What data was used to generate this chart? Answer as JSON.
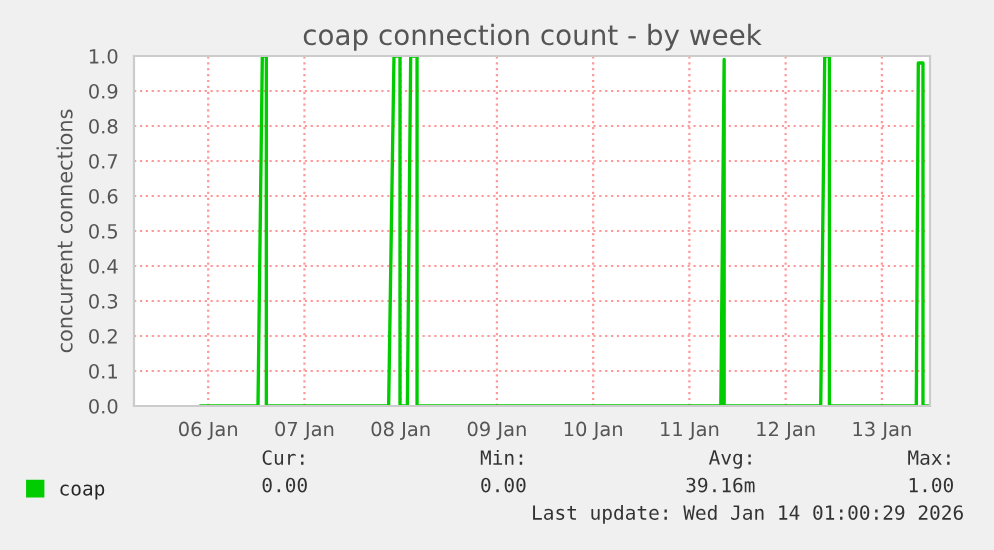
{
  "chart_data": {
    "type": "line",
    "title": "coap connection count - by week",
    "ylabel": "concurrent connections",
    "xlim": [
      "2026-01-05T17:30",
      "2026-01-14T00:00"
    ],
    "xticks": [
      {
        "value": "2026-01-06T12:00",
        "label": "06 Jan"
      },
      {
        "value": "2026-01-07T12:00",
        "label": "07 Jan"
      },
      {
        "value": "2026-01-08T12:00",
        "label": "08 Jan"
      },
      {
        "value": "2026-01-09T12:00",
        "label": "09 Jan"
      },
      {
        "value": "2026-01-10T12:00",
        "label": "10 Jan"
      },
      {
        "value": "2026-01-11T12:00",
        "label": "11 Jan"
      },
      {
        "value": "2026-01-12T12:00",
        "label": "12 Jan"
      },
      {
        "value": "2026-01-13T12:00",
        "label": "13 Jan"
      }
    ],
    "ylim": [
      0,
      1
    ],
    "yticks": [
      {
        "value": 0,
        "label": "0.0"
      },
      {
        "value": 0.1,
        "label": "0.1"
      },
      {
        "value": 0.2,
        "label": "0.2"
      },
      {
        "value": 0.3,
        "label": "0.3"
      },
      {
        "value": 0.4,
        "label": "0.4"
      },
      {
        "value": 0.5,
        "label": "0.5"
      },
      {
        "value": 0.6,
        "label": "0.6"
      },
      {
        "value": 0.7,
        "label": "0.7"
      },
      {
        "value": 0.8,
        "label": "0.8"
      },
      {
        "value": 0.9,
        "label": "0.9"
      },
      {
        "value": 1,
        "label": "1.0"
      }
    ],
    "grid": true,
    "legend": "bottom left",
    "series": [
      {
        "name": "coap",
        "color": "#00cc00",
        "x": [
          "2026-01-06T10:00",
          "2026-01-07T00:25",
          "2026-01-07T01:30",
          "2026-01-07T02:30",
          "2026-01-07T02:30",
          "2026-01-08T09:00",
          "2026-01-08T10:20",
          "2026-01-08T11:50",
          "2026-01-08T11:50",
          "2026-01-08T13:40",
          "2026-01-08T14:30",
          "2026-01-08T16:05",
          "2026-01-08T16:05",
          "2026-01-11T19:50",
          "2026-01-11T20:40",
          "2026-01-11T20:40",
          "2026-01-12T20:45",
          "2026-01-12T21:45",
          "2026-01-12T22:55",
          "2026-01-12T22:55",
          "2026-01-13T20:35",
          "2026-01-13T21:05",
          "2026-01-13T22:15",
          "2026-01-13T22:15",
          "2026-01-13T23:45"
        ],
        "values": [
          0,
          0,
          1,
          1,
          0,
          0,
          1,
          1,
          0,
          0,
          1,
          1,
          0,
          0,
          0.99,
          0,
          0,
          1,
          1,
          0,
          0,
          0.98,
          0.98,
          0,
          0
        ]
      }
    ],
    "annotations": [
      "Cur:",
      "0.00",
      "Min:",
      "0.00",
      "Avg:",
      "39.16m",
      "Max:",
      "1.00",
      "Last update: Wed Jan 14 01:00:29 2026"
    ]
  }
}
